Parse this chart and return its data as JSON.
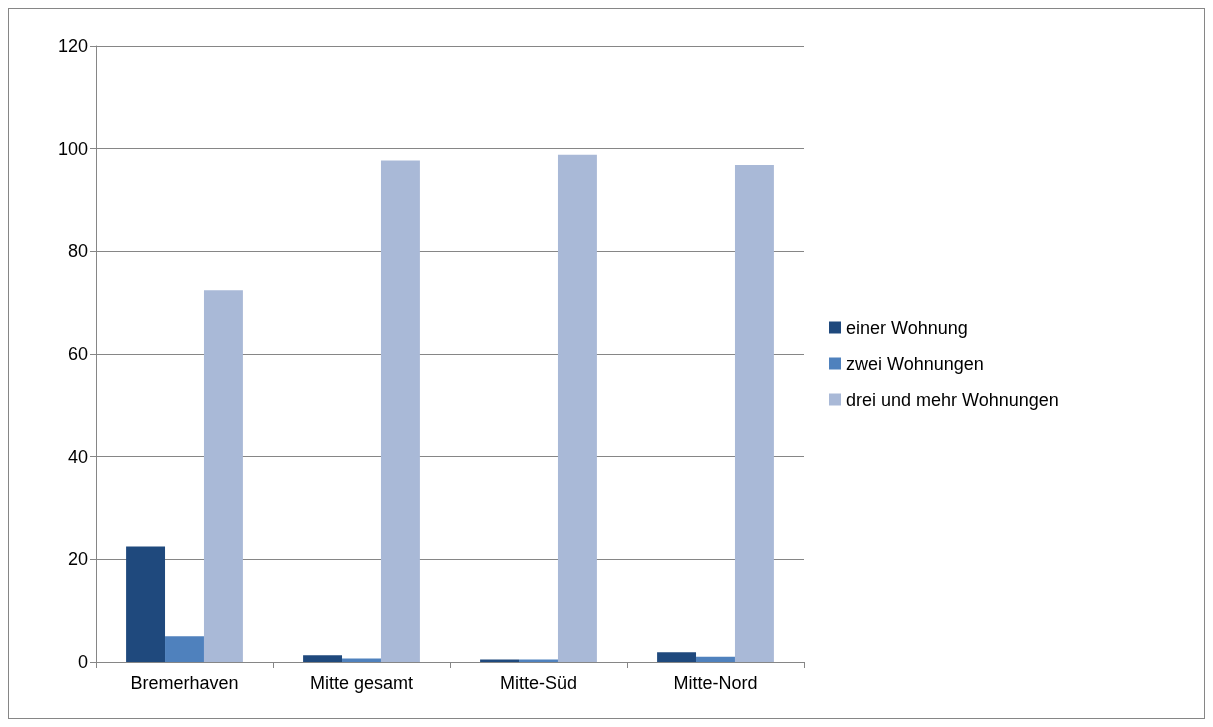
{
  "chart_data": {
    "type": "bar",
    "categories": [
      "Bremerhaven",
      "Mitte gesamt",
      "Mitte-Süd",
      "Mitte-Nord"
    ],
    "series": [
      {
        "name": "einer Wohnung",
        "color": "#1f497d",
        "values": [
          22.5,
          1.3,
          0.5,
          1.9
        ]
      },
      {
        "name": "zwei Wohnungen",
        "color": "#4f81bd",
        "values": [
          5.0,
          0.7,
          0.5,
          1.0
        ]
      },
      {
        "name": "drei und mehr Wohnungen",
        "color": "#a9b9d7",
        "values": [
          72.4,
          97.7,
          98.8,
          96.8
        ]
      }
    ],
    "ylim": [
      0,
      120
    ],
    "yticks": [
      0,
      20,
      40,
      60,
      80,
      100,
      120
    ],
    "grid": "y",
    "legend": "right"
  }
}
